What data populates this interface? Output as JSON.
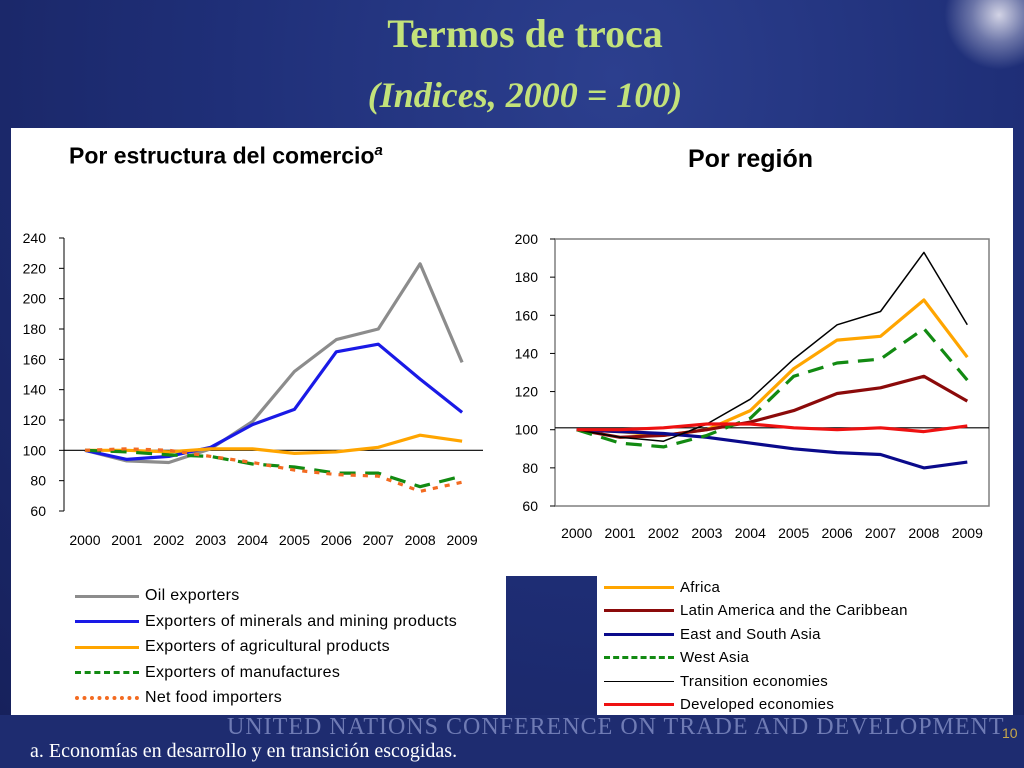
{
  "slide": {
    "title": "Termos de troca",
    "subtitle": "(Indices, 2000 = 100)",
    "footer_org": "UNITED NATIONS CONFERENCE ON TRADE AND DEVELOPMENT",
    "page_number": "10",
    "footnote": "a. Economías en desarrollo y en transición escogidas."
  },
  "chart_data": [
    {
      "type": "line",
      "title": "Por estructura del comercio",
      "title_superscript": "a",
      "x": [
        "2000",
        "2001",
        "2002",
        "2003",
        "2004",
        "2005",
        "2006",
        "2007",
        "2008",
        "2009"
      ],
      "ylim": [
        60,
        240
      ],
      "yticks": [
        60,
        80,
        100,
        120,
        140,
        160,
        180,
        200,
        220,
        240
      ],
      "reference_line": 100,
      "grid": false,
      "legend_position": "bottom",
      "series": [
        {
          "name": "Oil exporters",
          "color": "#8c8c8c",
          "dash": "solid",
          "values": [
            100,
            93,
            92,
            101,
            119,
            152,
            173,
            180,
            223,
            158
          ]
        },
        {
          "name": "Exporters of minerals and mining products",
          "color": "#1a1ae6",
          "dash": "solid",
          "values": [
            100,
            94,
            96,
            102,
            117,
            127,
            165,
            170,
            147,
            125
          ]
        },
        {
          "name": "Exporters of agricultural products",
          "color": "#ffa500",
          "dash": "solid",
          "values": [
            100,
            100,
            99,
            101,
            101,
            98,
            99,
            102,
            110,
            106
          ]
        },
        {
          "name": "Exporters of manufactures",
          "color": "#128a12",
          "dash": "long",
          "values": [
            100,
            99,
            97,
            96,
            91,
            89,
            85,
            85,
            76,
            83
          ]
        },
        {
          "name": "Net food importers",
          "color": "#f36b21",
          "dash": "short",
          "values": [
            100,
            101,
            100,
            96,
            92,
            87,
            84,
            83,
            73,
            79
          ]
        }
      ]
    },
    {
      "type": "line",
      "title": "Por región",
      "x": [
        "2000",
        "2001",
        "2002",
        "2003",
        "2004",
        "2005",
        "2006",
        "2007",
        "2008",
        "2009"
      ],
      "ylim": [
        60,
        200
      ],
      "yticks": [
        60,
        80,
        100,
        120,
        140,
        160,
        180,
        200
      ],
      "reference_line": 101,
      "grid": false,
      "legend_position": "bottom",
      "series": [
        {
          "name": "Africa",
          "color": "#ffa500",
          "dash": "solid",
          "values": [
            100,
            99,
            97,
            100,
            110,
            132,
            147,
            149,
            168,
            138
          ]
        },
        {
          "name": "Latin America and the Caribbean",
          "color": "#8b0a0a",
          "dash": "solid",
          "values": [
            100,
            96,
            97,
            100,
            104,
            110,
            119,
            122,
            128,
            115
          ]
        },
        {
          "name": "East and South Asia",
          "color": "#0a0a8b",
          "dash": "solid",
          "values": [
            100,
            99,
            98,
            96,
            93,
            90,
            88,
            87,
            80,
            83
          ]
        },
        {
          "name": "West Asia",
          "color": "#128a12",
          "dash": "long",
          "values": [
            100,
            93,
            91,
            97,
            106,
            128,
            135,
            137,
            153,
            126
          ]
        },
        {
          "name": "Transition economies",
          "color": "#000000",
          "dash": "solid",
          "thin": true,
          "values": [
            100,
            96,
            94,
            103,
            116,
            137,
            155,
            162,
            193,
            155
          ]
        },
        {
          "name": "Developed economies",
          "color": "#ee1111",
          "dash": "solid",
          "values": [
            100,
            100,
            101,
            103,
            103,
            101,
            100,
            101,
            99,
            102
          ]
        }
      ]
    }
  ]
}
